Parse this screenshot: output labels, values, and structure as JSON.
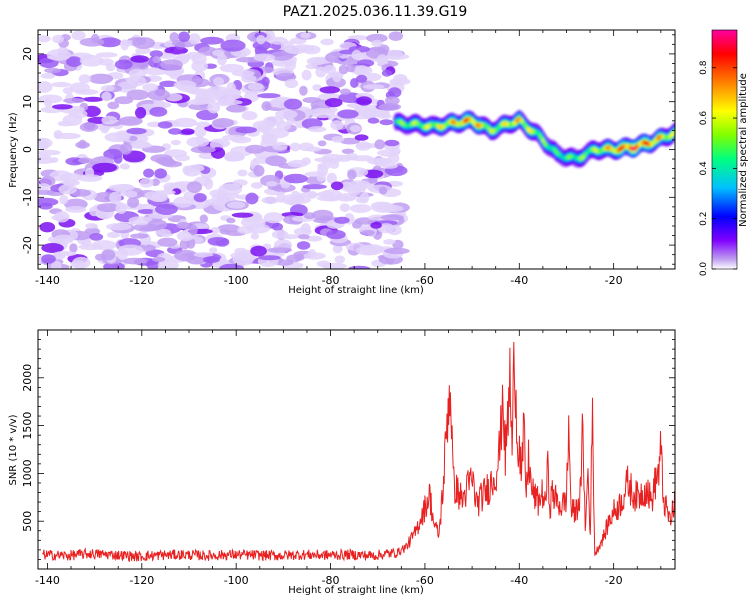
{
  "title": "PAZ1.2025.036.11.39.G19",
  "chart_data": [
    {
      "type": "heatmap",
      "xlabel": "Height of straight line (km)",
      "ylabel": "Frequency (Hz)",
      "xlim": [
        -142,
        -7
      ],
      "ylim": [
        -25,
        25
      ],
      "xticks": [
        -140,
        -120,
        -100,
        -80,
        -60,
        -40,
        -20
      ],
      "yticks": [
        20,
        10,
        0,
        -10,
        -20
      ],
      "colorbar": {
        "label": "Normalized spectral amplitude",
        "range": [
          0.0,
          0.95
        ],
        "ticks": [
          0.0,
          0.2,
          0.4,
          0.6,
          0.8
        ],
        "colors": [
          "#ffffff",
          "#c0a0f0",
          "#8000ff",
          "#0000ff",
          "#00c0ff",
          "#00ff80",
          "#80ff00",
          "#ffff00",
          "#ff8000",
          "#ff0000",
          "#ff00a0"
        ]
      },
      "noise_region": {
        "x_from": -141,
        "x_to": -65,
        "freq_from": -25,
        "freq_to": 24,
        "amplitude": 0.12
      },
      "signal_track": {
        "x": [
          -66,
          -62,
          -58,
          -54,
          -50,
          -46,
          -42,
          -40,
          -36,
          -32,
          -28,
          -24,
          -20,
          -16,
          -12,
          -7
        ],
        "freq": [
          5.5,
          5.2,
          4.8,
          5.5,
          6,
          4,
          5.5,
          6,
          3,
          -1,
          -2,
          0,
          0,
          0.5,
          1.5,
          3.5
        ],
        "amplitude": [
          0.55,
          0.6,
          0.65,
          0.75,
          0.85,
          0.6,
          0.7,
          0.75,
          0.6,
          0.5,
          0.55,
          0.6,
          0.8,
          0.95,
          0.85,
          0.6
        ]
      }
    },
    {
      "type": "line",
      "xlabel": "Height of straight line (km)",
      "ylabel": "SNR (10 * v/v)",
      "xlim": [
        -142,
        -7
      ],
      "ylim": [
        0,
        2500
      ],
      "xticks": [
        -140,
        -120,
        -100,
        -80,
        -60,
        -40,
        -20
      ],
      "yticks": [
        500,
        1000,
        1500,
        2000
      ],
      "series": [
        {
          "color": "#e82020",
          "x": [
            -141,
            -136,
            -131,
            -126,
            -121,
            -116,
            -111,
            -106,
            -101,
            -96,
            -91,
            -86,
            -81,
            -76,
            -71,
            -66,
            -64,
            -62,
            -61,
            -60,
            -59,
            -58,
            -57,
            -56,
            -55,
            -54.5,
            -54,
            -53,
            -52,
            -51,
            -50,
            -49,
            -48,
            -47,
            -46,
            -45,
            -44,
            -43.5,
            -43,
            -42.5,
            -42,
            -41.5,
            -41,
            -40.5,
            -40,
            -39.5,
            -39,
            -38.5,
            -38,
            -37.5,
            -37,
            -36,
            -35,
            -34.5,
            -34,
            -33.5,
            -33,
            -32,
            -31,
            -30,
            -29.5,
            -29,
            -28,
            -27,
            -26.5,
            -26,
            -25.5,
            -25,
            -24.5,
            -24,
            -23,
            -22,
            -21,
            -20,
            -19,
            -18,
            -17,
            -16,
            -15,
            -14,
            -13,
            -12,
            -11,
            -10.5,
            -10,
            -9.5,
            -9,
            -8,
            -7
          ],
          "y": [
            150,
            140,
            160,
            150,
            130,
            145,
            150,
            140,
            150,
            145,
            140,
            150,
            145,
            150,
            140,
            170,
            230,
            380,
            520,
            640,
            780,
            450,
            360,
            950,
            1800,
            1850,
            900,
            800,
            720,
            850,
            950,
            680,
            750,
            820,
            900,
            1000,
            1300,
            1950,
            1150,
            1500,
            2000,
            1200,
            2450,
            1400,
            1300,
            950,
            1450,
            750,
            1200,
            850,
            780,
            700,
            800,
            650,
            1050,
            650,
            800,
            700,
            650,
            750,
            1500,
            600,
            600,
            800,
            1550,
            300,
            1100,
            350,
            1600,
            150,
            250,
            350,
            500,
            600,
            650,
            750,
            900,
            800,
            750,
            800,
            850,
            700,
            950,
            1000,
            1250,
            750,
            650,
            500,
            700
          ]
        }
      ]
    }
  ]
}
